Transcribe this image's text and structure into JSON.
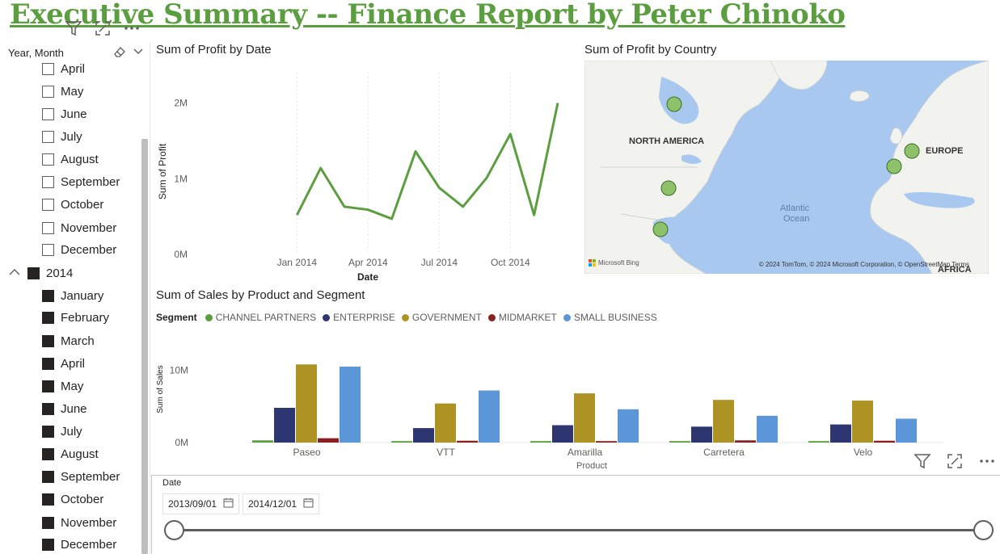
{
  "report_title": "Executive Summary --  Finance Report by Peter Chinoko",
  "slicer": {
    "title": "Year, Month",
    "items_2013": [
      {
        "label": "April",
        "checked": false
      },
      {
        "label": "May",
        "checked": false
      },
      {
        "label": "June",
        "checked": false
      },
      {
        "label": "July",
        "checked": false
      },
      {
        "label": "August",
        "checked": false
      },
      {
        "label": "September",
        "checked": false
      },
      {
        "label": "October",
        "checked": false
      },
      {
        "label": "November",
        "checked": false
      },
      {
        "label": "December",
        "checked": false
      }
    ],
    "year_2014": {
      "label": "2014",
      "checked": true
    },
    "items_2014": [
      {
        "label": "January",
        "checked": true
      },
      {
        "label": "February",
        "checked": true
      },
      {
        "label": "March",
        "checked": true
      },
      {
        "label": "April",
        "checked": true
      },
      {
        "label": "May",
        "checked": true
      },
      {
        "label": "June",
        "checked": true
      },
      {
        "label": "July",
        "checked": true
      },
      {
        "label": "August",
        "checked": true
      },
      {
        "label": "September",
        "checked": true
      },
      {
        "label": "October",
        "checked": true
      },
      {
        "label": "November",
        "checked": true
      },
      {
        "label": "December",
        "checked": true
      }
    ]
  },
  "profit_by_date": {
    "title": "Sum of Profit by Date"
  },
  "profit_by_country": {
    "title": "Sum of Profit by Country",
    "labels": {
      "north_america": "NORTH AMERICA",
      "europe": "EUROPE",
      "atlantic_1": "Atlantic",
      "atlantic_2": "Ocean",
      "africa": "AFRICA"
    },
    "attribution": "© 2024 TomTom, © 2024 Microsoft Corporation, © OpenStreetMap  Terms",
    "bing": "Microsoft Bing",
    "bubble_color": "#8dc26b"
  },
  "sales_by_product": {
    "title": "Sum of Sales by Product and Segment",
    "legend_title": "Segment"
  },
  "date_slicer": {
    "label": "Date",
    "start": "2013/09/01",
    "end": "2014/12/01"
  },
  "chart_data": [
    {
      "type": "line",
      "title": "Sum of Profit by Date",
      "xlabel": "Date",
      "ylabel": "Sum of Profit",
      "x": [
        "2013-09",
        "2013-10",
        "2013-11",
        "2013-12",
        "2014-01",
        "2014-02",
        "2014-03",
        "2014-04",
        "2014-05",
        "2014-06",
        "2014-07",
        "2014-08",
        "2014-09",
        "2014-10",
        "2014-11",
        "2014-12"
      ],
      "x_ticks": [
        "Jan 2014",
        "Apr 2014",
        "Jul 2014",
        "Oct 2014"
      ],
      "y_ticks": [
        "0M",
        "1M",
        "2M"
      ],
      "ylim": [
        0,
        2400000
      ],
      "series": [
        {
          "color": "#5b9e3f",
          "values": [
            null,
            null,
            null,
            null,
            520000,
            1140000,
            630000,
            590000,
            470000,
            1360000,
            880000,
            630000,
            1010000,
            1590000,
            520000,
            2000000
          ]
        }
      ],
      "grid": true
    },
    {
      "type": "bar",
      "title": "Sum of Sales by Product and Segment",
      "xlabel": "Product",
      "ylabel": "Sum of Sales",
      "categories": [
        "Paseo",
        "VTT",
        "Amarilla",
        "Carretera",
        "Velo"
      ],
      "y_ticks": [
        "0M",
        "10M"
      ],
      "ylim": [
        0,
        11500000
      ],
      "legend_title": "Segment",
      "legend_position": "top-left",
      "series": [
        {
          "name": "CHANNEL PARTNERS",
          "color": "#5b9e3f",
          "values": [
            300000,
            200000,
            200000,
            200000,
            200000
          ]
        },
        {
          "name": "ENTERPRISE",
          "color": "#2d3670",
          "values": [
            4800000,
            2000000,
            2400000,
            2200000,
            2500000
          ]
        },
        {
          "name": "GOVERNMENT",
          "color": "#ad9323",
          "values": [
            10800000,
            5400000,
            6800000,
            5900000,
            5800000
          ]
        },
        {
          "name": "MIDMARKET",
          "color": "#8a1f22",
          "values": [
            600000,
            250000,
            200000,
            300000,
            250000
          ]
        },
        {
          "name": "SMALL BUSINESS",
          "color": "#5b97d8",
          "values": [
            10500000,
            7200000,
            4600000,
            3700000,
            3300000
          ]
        }
      ]
    }
  ]
}
